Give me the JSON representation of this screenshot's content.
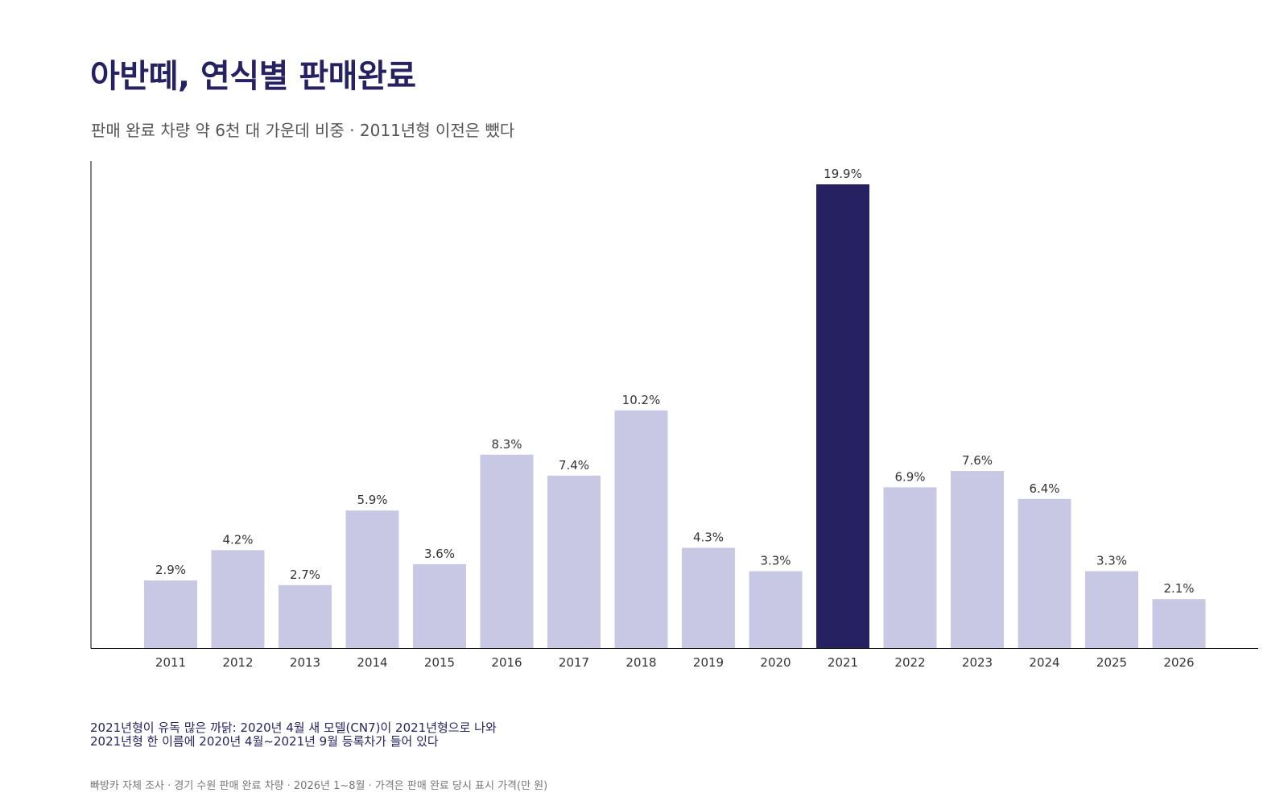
{
  "header": {
    "title": "아반떼, 연식별 판매완료",
    "subtitle": "판매 완료 차량 약 6천 대 가운데 비중 · 2011년형 이전은 뺐다"
  },
  "chart_data": {
    "type": "bar",
    "title": "아반떼, 연식별 판매완료",
    "subtitle": "판매 완료 차량 약 6천 대 가운데 비중 · 2011년형 이전은 뺐다",
    "xlabel": "",
    "ylabel": "",
    "categories": [
      "2011",
      "2012",
      "2013",
      "2014",
      "2015",
      "2016",
      "2017",
      "2018",
      "2019",
      "2020",
      "2021",
      "2022",
      "2023",
      "2024",
      "2025",
      "2026"
    ],
    "values": [
      2.9,
      4.2,
      2.7,
      5.9,
      3.6,
      8.3,
      7.4,
      10.2,
      4.3,
      3.3,
      19.9,
      6.9,
      7.6,
      6.4,
      3.3,
      2.1
    ],
    "data_labels": [
      "2.9%",
      "4.2%",
      "2.7%",
      "5.9%",
      "3.6%",
      "8.3%",
      "7.4%",
      "10.2%",
      "4.3%",
      "3.3%",
      "19.9%",
      "6.9%",
      "7.6%",
      "6.4%",
      "3.3%",
      "2.1%"
    ],
    "unit": "%",
    "ylim": [
      0,
      21
    ],
    "highlight_category": "2021",
    "grid": false,
    "legend": "none",
    "colors": {
      "bar": "#c9c8e4",
      "highlight": "#262262",
      "axis": "#000000",
      "tick_label": "#333333",
      "data_label": "#333333"
    }
  },
  "footer": {
    "note_lines": [
      "2021년형이 유독 많은 까닭: 2020년 4월 새 모델(CN7)이 2021년형으로 나와",
      "2021년형 한 이름에 2020년 4월~2021년 9월 등록차가 들어 있다"
    ],
    "source": "빠방카 자체 조사 · 경기 수원 판매 완료 차량 · 2026년 1~8월 · 가격은 판매 완료 당시 표시 가격(만 원)"
  }
}
